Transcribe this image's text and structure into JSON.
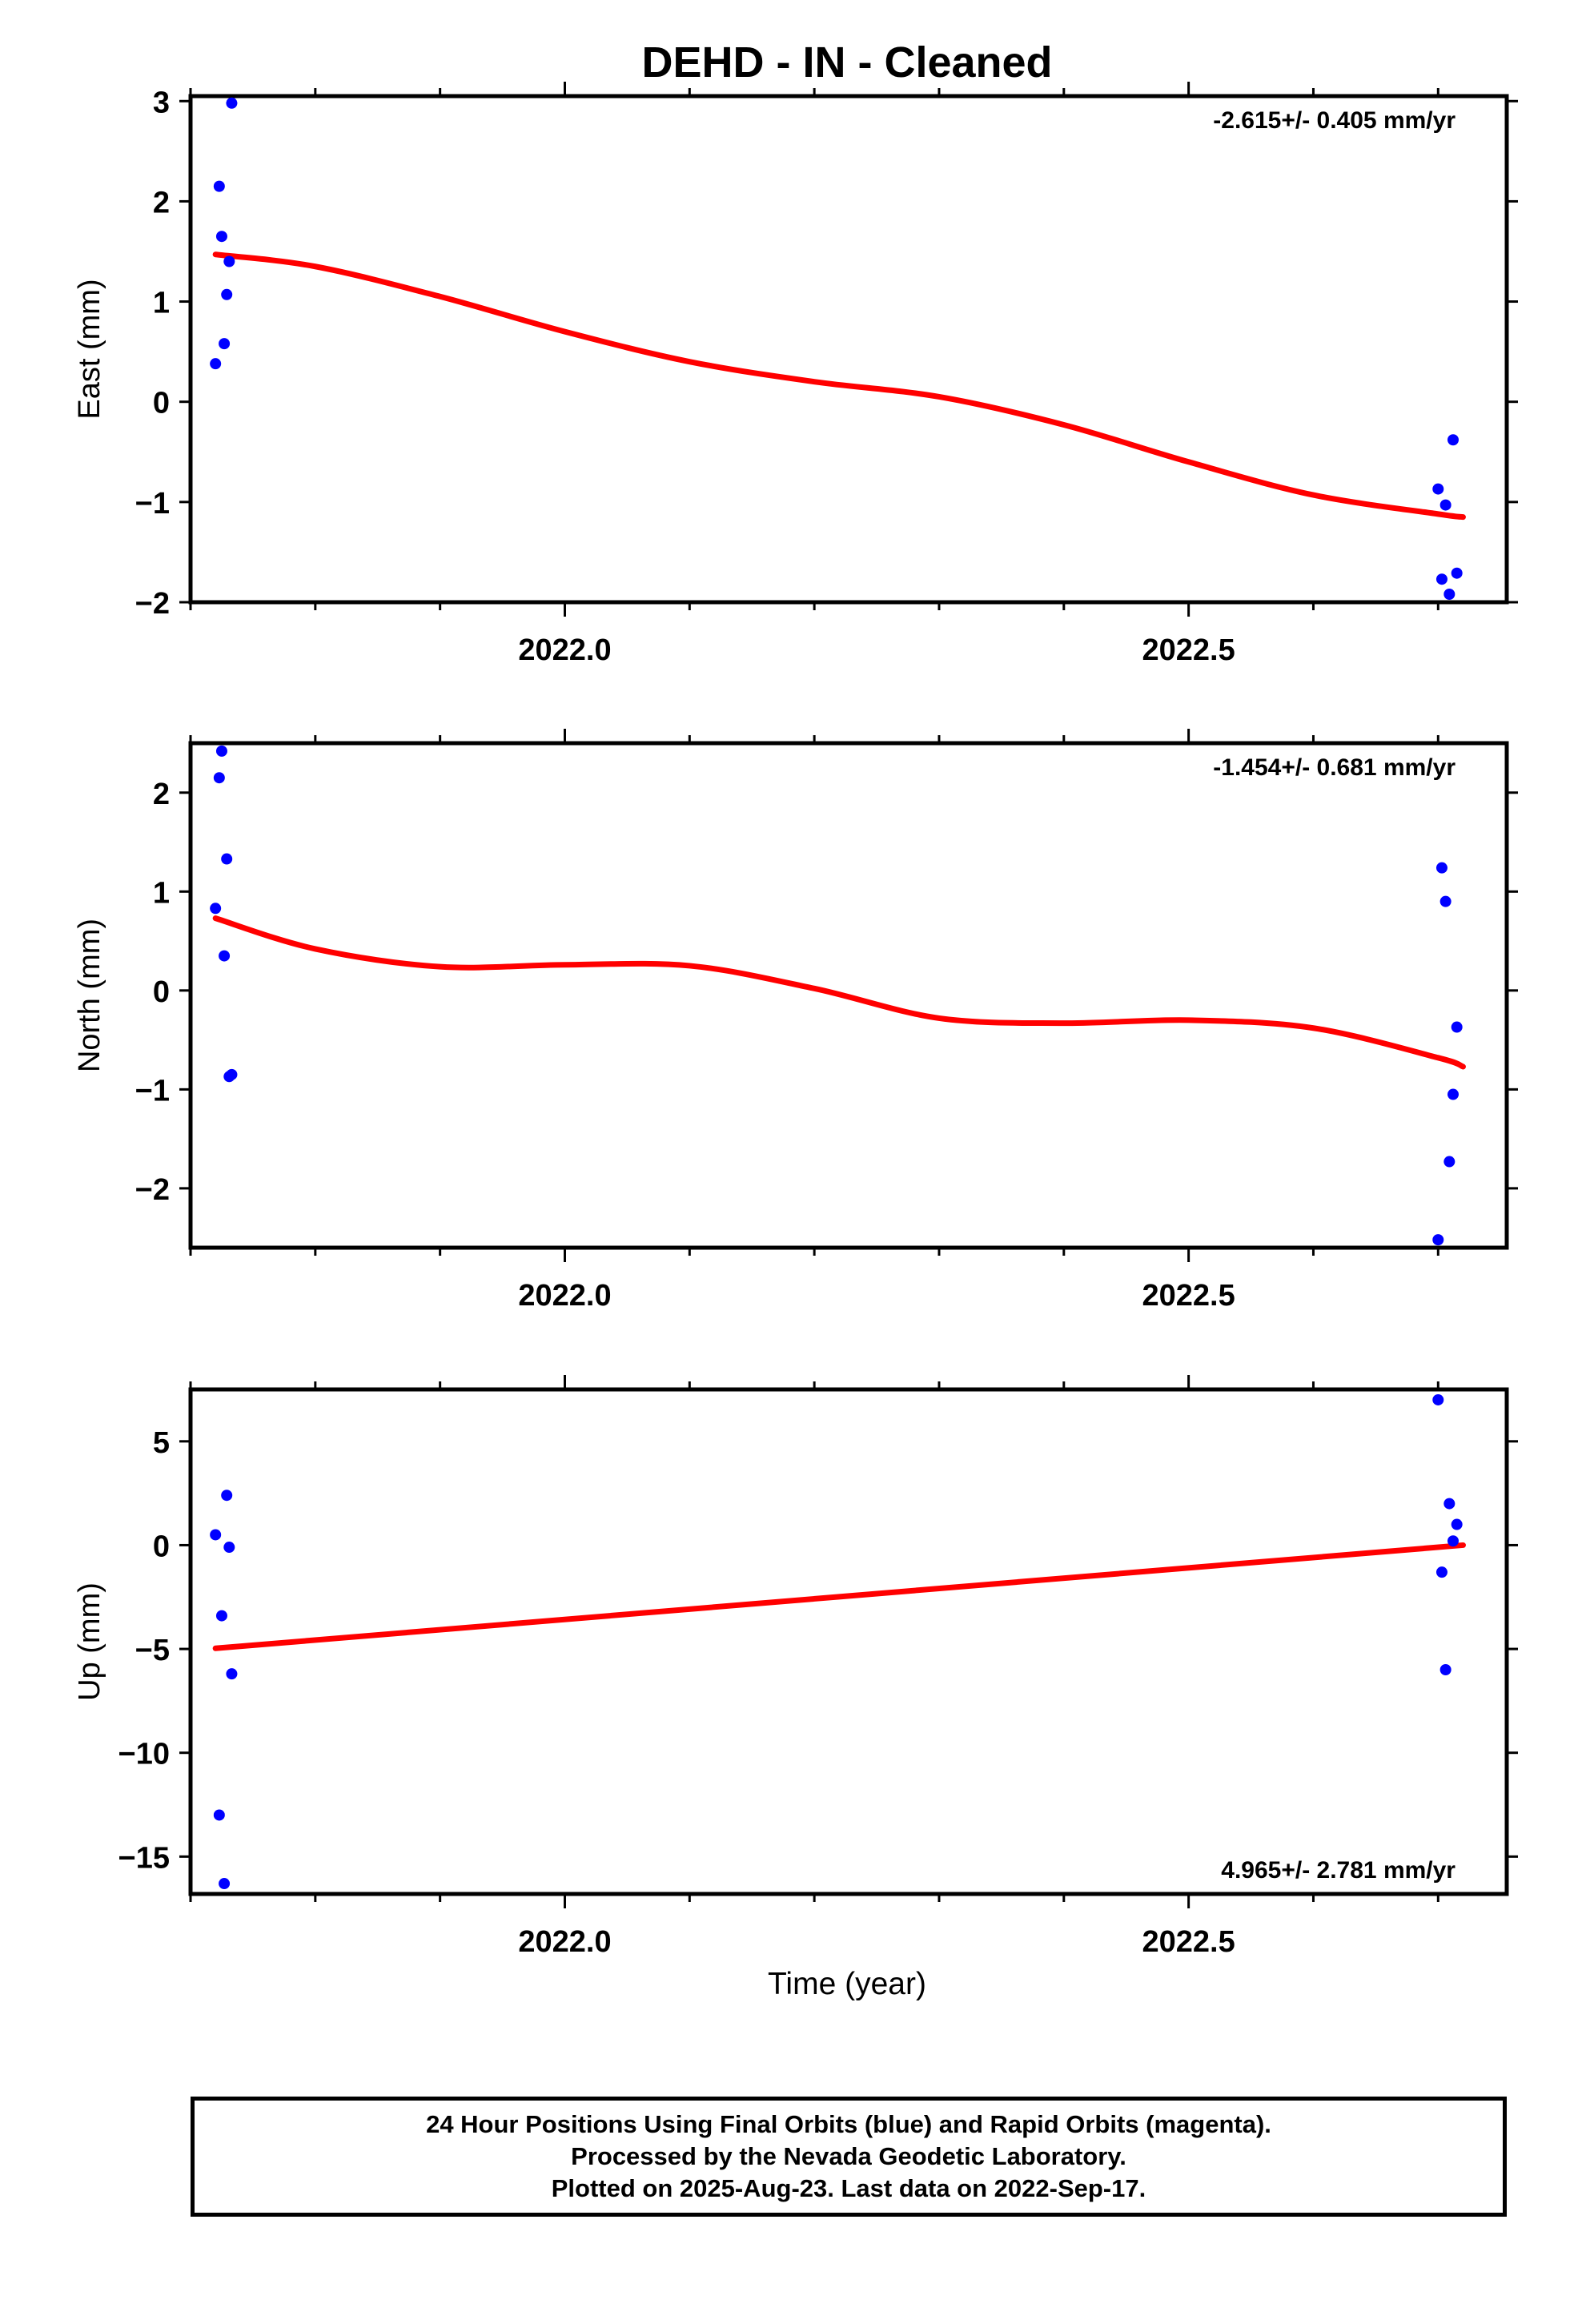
{
  "title": "DEHD  - IN - Cleaned",
  "x_axis": {
    "label": "Time (year)",
    "range": [
      2021.7,
      2022.755
    ],
    "major_ticks": [
      2022.0,
      2022.5
    ],
    "tick_labels": [
      "2022.0",
      "2022.5"
    ],
    "minor_step": 0.1
  },
  "chart_data": [
    {
      "type": "scatter",
      "ylabel": "East (mm)",
      "rate_label": "-2.615+/- 0.405 mm/yr",
      "ylim": [
        -2,
        3.05
      ],
      "yticks": [
        -2,
        -1,
        0,
        1,
        2,
        3
      ],
      "ytick_labels": [
        "−2",
        "−1",
        "0",
        "1",
        "2",
        "3"
      ],
      "points": {
        "x": [
          2021.72,
          2021.723,
          2021.725,
          2021.727,
          2021.729,
          2021.731,
          2021.733,
          2022.7,
          2022.703,
          2022.706,
          2022.709,
          2022.712,
          2022.715
        ],
        "y": [
          0.38,
          2.15,
          1.65,
          0.58,
          1.07,
          1.4,
          2.98,
          -0.87,
          -1.77,
          -1.03,
          -1.92,
          -0.38,
          -1.71
        ]
      },
      "fit": {
        "x": [
          2021.72,
          2021.8,
          2021.9,
          2022.0,
          2022.1,
          2022.2,
          2022.3,
          2022.4,
          2022.5,
          2022.6,
          2022.7,
          2022.72
        ],
        "y": [
          1.47,
          1.35,
          1.05,
          0.7,
          0.4,
          0.2,
          0.05,
          -0.23,
          -0.6,
          -0.93,
          -1.12,
          -1.15
        ]
      }
    },
    {
      "type": "scatter",
      "ylabel": "North (mm)",
      "rate_label": "-1.454+/- 0.681 mm/yr",
      "ylim": [
        -2.6,
        2.5
      ],
      "yticks": [
        -2,
        -1,
        0,
        1,
        2
      ],
      "ytick_labels": [
        "−2",
        "−1",
        "0",
        "1",
        "2"
      ],
      "points": {
        "x": [
          2021.72,
          2021.723,
          2021.725,
          2021.727,
          2021.729,
          2021.731,
          2021.733,
          2022.7,
          2022.703,
          2022.706,
          2022.709,
          2022.712,
          2022.715
        ],
        "y": [
          0.83,
          2.15,
          2.42,
          0.35,
          1.33,
          -0.87,
          -0.85,
          -2.52,
          1.24,
          0.9,
          -1.73,
          -1.05,
          -0.37
        ]
      },
      "fit": {
        "x": [
          2021.72,
          2021.8,
          2021.9,
          2022.0,
          2022.1,
          2022.2,
          2022.3,
          2022.4,
          2022.5,
          2022.6,
          2022.7,
          2022.72
        ],
        "y": [
          0.73,
          0.42,
          0.24,
          0.26,
          0.25,
          0.02,
          -0.28,
          -0.33,
          -0.3,
          -0.38,
          -0.68,
          -0.77
        ]
      }
    },
    {
      "type": "scatter",
      "ylabel": "Up (mm)",
      "rate_label": "4.965+/- 2.781 mm/yr",
      "ylim": [
        -16.8,
        7.5
      ],
      "yticks": [
        -15,
        -10,
        -5,
        0,
        5
      ],
      "ytick_labels": [
        "−15",
        "−10",
        "−5",
        "0",
        "5"
      ],
      "points": {
        "x": [
          2021.72,
          2021.723,
          2021.725,
          2021.727,
          2021.729,
          2021.731,
          2021.733,
          2022.7,
          2022.703,
          2022.706,
          2022.709,
          2022.712,
          2022.715
        ],
        "y": [
          0.5,
          -13.0,
          -3.4,
          -16.3,
          2.4,
          -0.1,
          -6.2,
          7.0,
          -1.3,
          -6.0,
          2.0,
          0.2,
          1.0
        ]
      },
      "fit": {
        "x": [
          2021.72,
          2022.72
        ],
        "y": [
          -4.97,
          0.0
        ]
      }
    }
  ],
  "footer": {
    "line1": "24 Hour Positions Using Final Orbits (blue) and Rapid Orbits (magenta).",
    "line2": "Processed by the Nevada Geodetic Laboratory.",
    "line3": "Plotted on 2025-Aug-23. Last data on 2022-Sep-17."
  },
  "colors": {
    "points": "#0000ff",
    "fit": "#ff0000",
    "frame": "#000000"
  }
}
